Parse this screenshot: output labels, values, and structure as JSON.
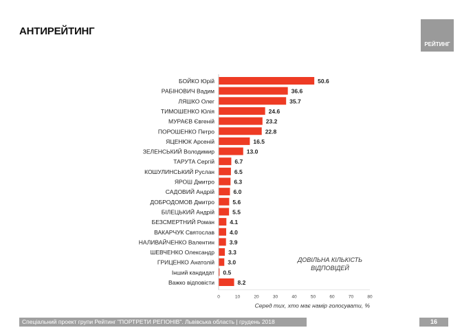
{
  "title": "АНТИРЕЙТИНГ",
  "logo_text": "РЕЙТИНГ",
  "note": "ДОВІЛЬНА КІЛЬКІСТЬ ВІДПОВІДЕЙ",
  "footer": "Спеціальний проект групи Рейтинг \"ПОРТРЕТИ РЕГІОНІВ\". Львівська область | грудень 2018",
  "page_number": "16",
  "colors": {
    "bar": "#ee3b24",
    "footer": "#a0a0a0"
  },
  "chart_data": {
    "type": "bar",
    "orientation": "horizontal",
    "categories": [
      "БОЙКО Юрій",
      "РАБІНОВИЧ Вадим",
      "ЛЯШКО Олег",
      "ТИМОШЕНКО Юлія",
      "МУРАЄВ Євгеній",
      "ПОРОШЕНКО Петро",
      "ЯЦЕНЮК Арсеній",
      "ЗЕЛЕНСЬКИЙ Володимир",
      "ТАРУТА Сергій",
      "КОШУЛИНСЬКИЙ Руслан",
      "ЯРОШ Дмитро",
      "САДОВИЙ Андрій",
      "ДОБРОДОМОВ Дмитро",
      "БІЛЕЦЬКИЙ Андрій",
      "БЕЗСМЕРТНИЙ Роман",
      "ВАКАРЧУК Святослав",
      "НАЛИВАЙЧЕНКО Валентин",
      "ШЕВЧЕНКО Олександр",
      "ГРИЦЕНКО Анатолій",
      "Інший кандидат",
      "Важко відповісти"
    ],
    "values": [
      50.6,
      36.6,
      35.7,
      24.6,
      23.2,
      22.8,
      16.5,
      13.0,
      6.7,
      6.5,
      6.3,
      6.0,
      5.6,
      5.5,
      4.1,
      4.0,
      3.9,
      3.3,
      3.0,
      0.5,
      8.2
    ],
    "xlabel": "Серед тих, хто має намір голосувати, %",
    "xlim": [
      0,
      80
    ],
    "xticks": [
      0,
      10,
      20,
      30,
      40,
      50,
      60,
      70,
      80
    ],
    "grid": false
  }
}
